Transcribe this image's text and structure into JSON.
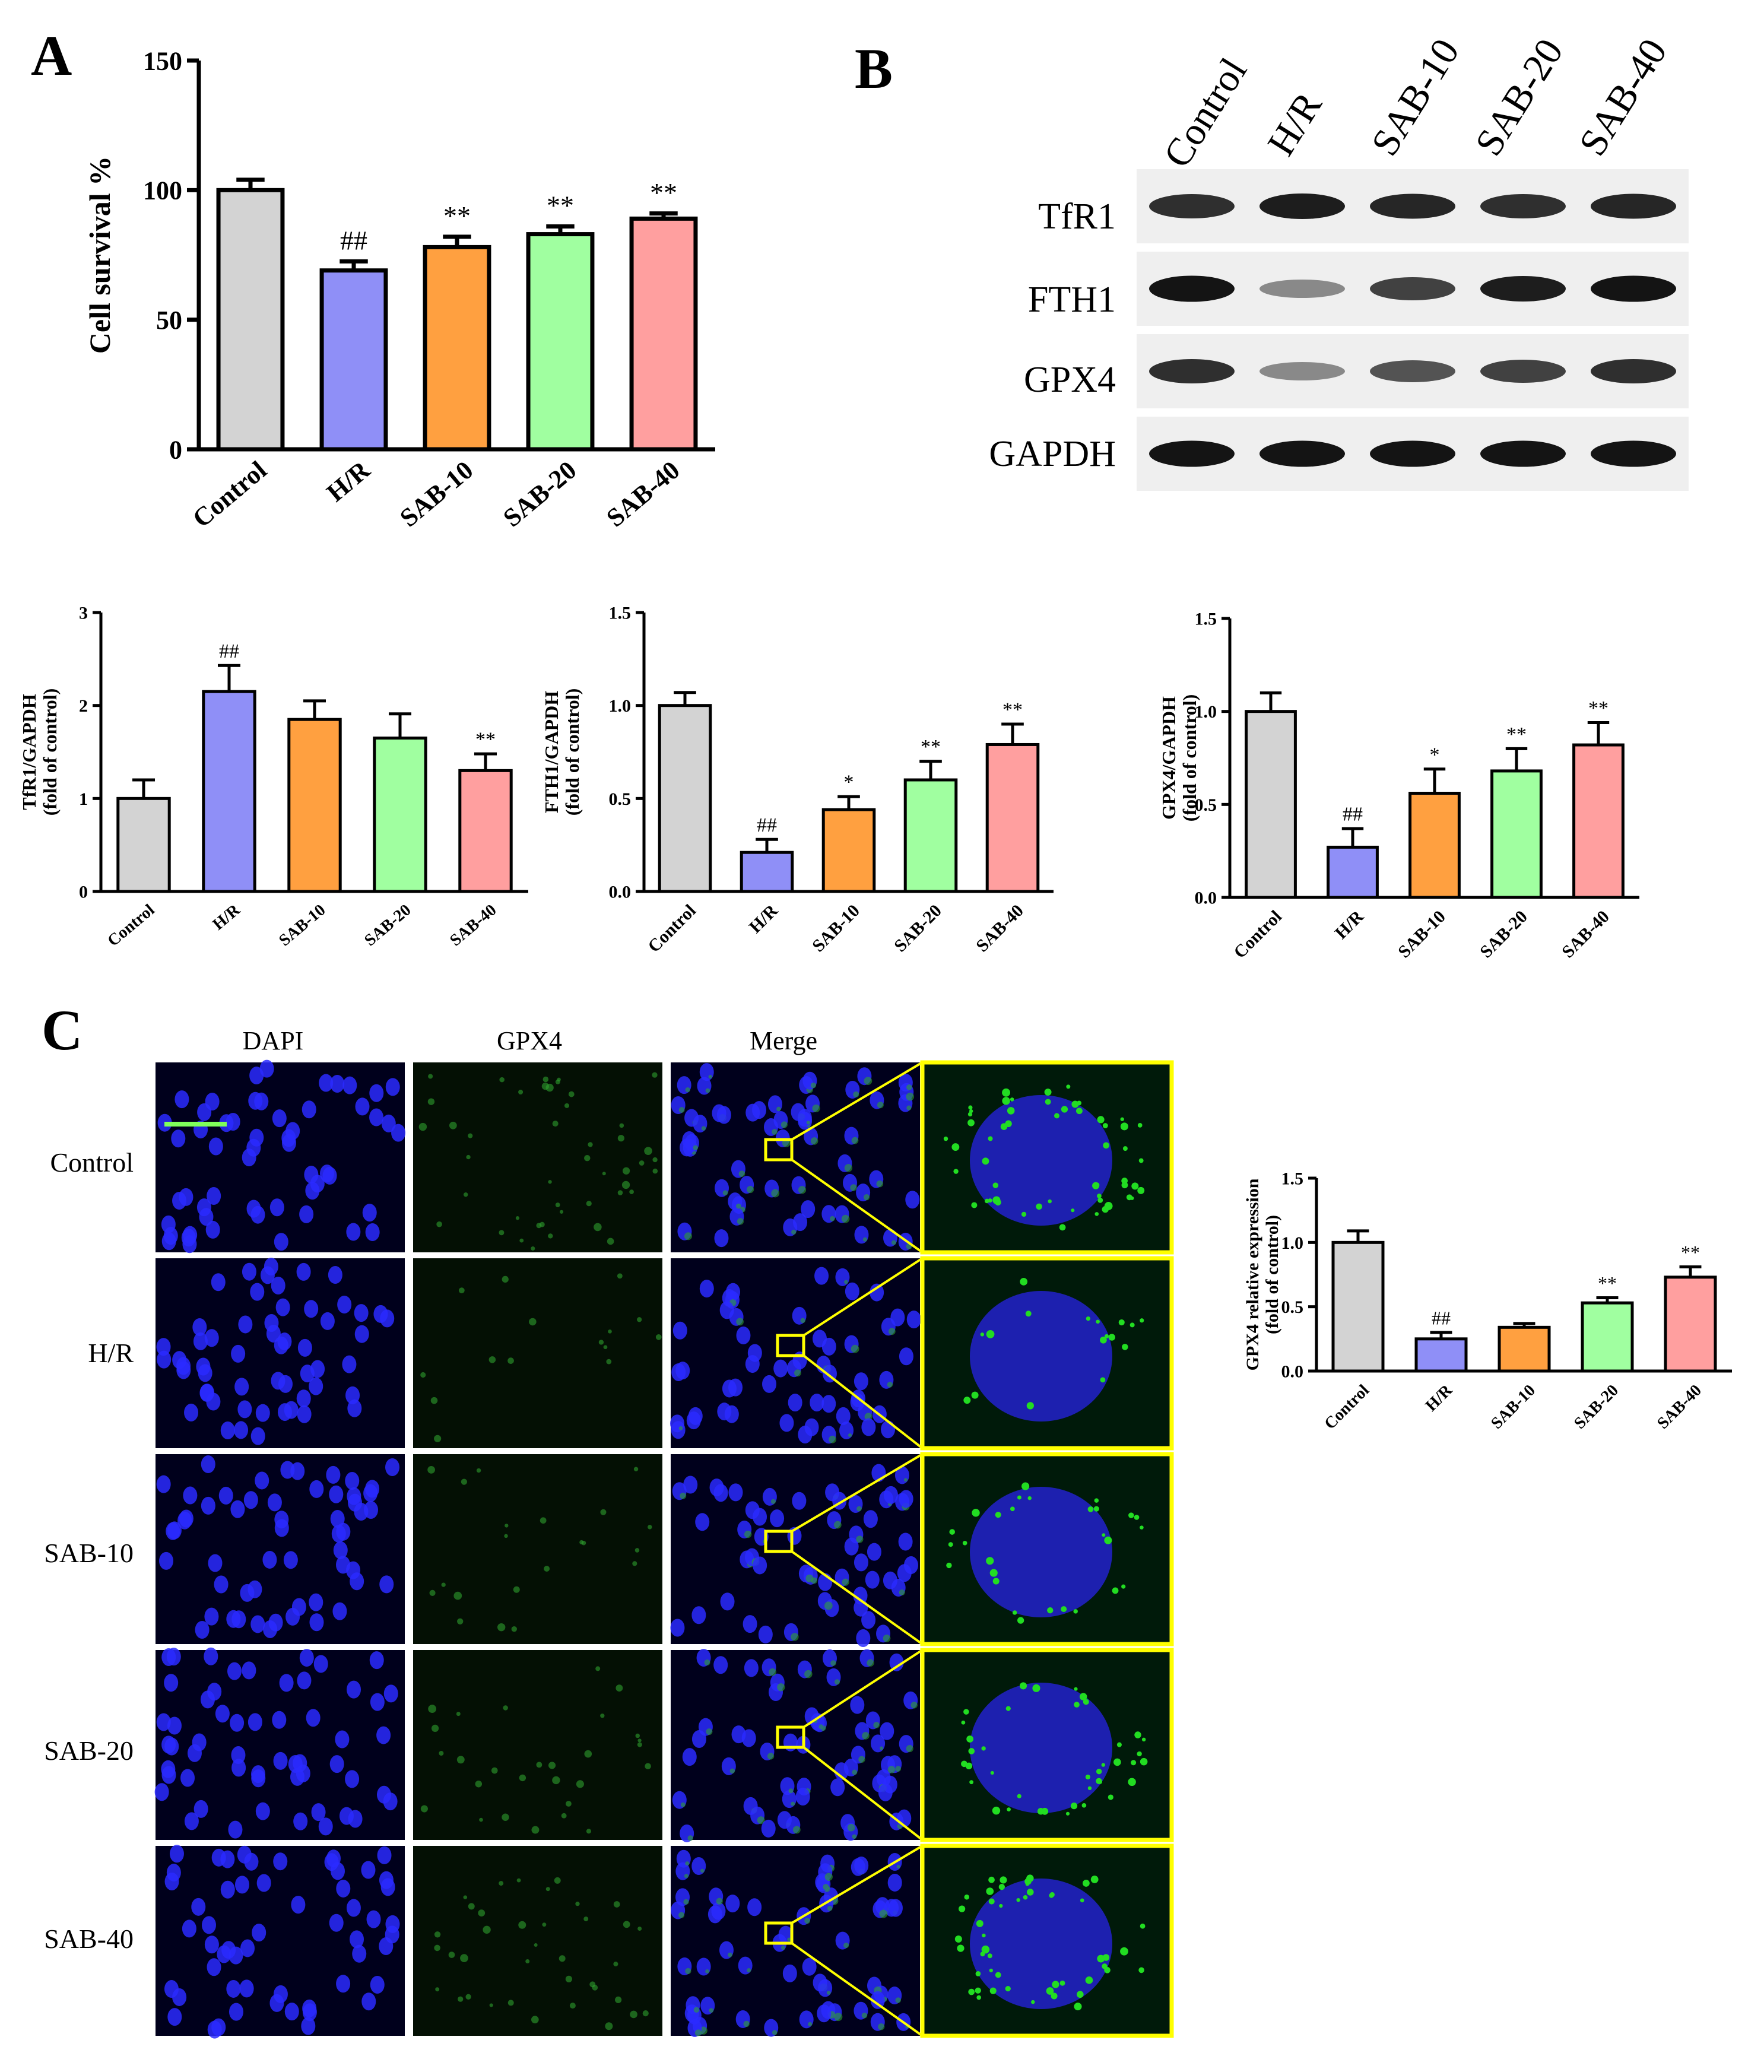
{
  "panel_letters": {
    "a": "A",
    "b": "B",
    "c": "C"
  },
  "colors": {
    "control": "#d3d3d3",
    "hr": "#8f8ff7",
    "sab10": "#ffa040",
    "sab20": "#a0ffa0",
    "sab40": "#ff9f9f",
    "yellow_box": "#ffff00",
    "scale_bar": "#7fff5a"
  },
  "chart_data": [
    {
      "id": "cell-survival",
      "type": "bar",
      "ylabel": "Cell survival %",
      "xlabel": "",
      "ylim": [
        0,
        150
      ],
      "yticks": [
        0,
        50,
        100,
        150
      ],
      "categories": [
        "Control",
        "H/R",
        "SAB-10",
        "SAB-20",
        "SAB-40"
      ],
      "values": [
        100,
        69,
        78,
        83,
        89
      ],
      "errors": [
        4,
        3.5,
        4,
        3,
        2
      ],
      "annotations": [
        "",
        "##",
        "**",
        "**",
        "**"
      ],
      "grid": false
    },
    {
      "id": "tfr1",
      "type": "bar",
      "ylabel": "TfR1/GAPDH",
      "ylabel2": "(fold of control)",
      "xlabel": "",
      "ylim": [
        0,
        3
      ],
      "yticks": [
        0,
        1,
        2,
        3
      ],
      "categories": [
        "Control",
        "H/R",
        "SAB-10",
        "SAB-20",
        "SAB-40"
      ],
      "values": [
        1.0,
        2.15,
        1.85,
        1.65,
        1.3
      ],
      "errors": [
        0.2,
        0.28,
        0.2,
        0.26,
        0.18
      ],
      "annotations": [
        "",
        "##",
        "",
        "",
        "**"
      ],
      "grid": false
    },
    {
      "id": "fth1",
      "type": "bar",
      "ylabel": "FTH1/GAPDH",
      "ylabel2": "(fold of control)",
      "xlabel": "",
      "ylim": [
        0,
        1.5
      ],
      "yticks": [
        0.0,
        0.5,
        1.0,
        1.5
      ],
      "categories": [
        "Control",
        "H/R",
        "SAB-10",
        "SAB-20",
        "SAB-40"
      ],
      "values": [
        1.0,
        0.21,
        0.44,
        0.6,
        0.79
      ],
      "errors": [
        0.07,
        0.07,
        0.07,
        0.1,
        0.11
      ],
      "annotations": [
        "",
        "##",
        "*",
        "**",
        "**"
      ],
      "grid": false
    },
    {
      "id": "gpx4-wb",
      "type": "bar",
      "ylabel": "GPX4/GAPDH",
      "ylabel2": "(fold of control)",
      "xlabel": "",
      "ylim": [
        0,
        1.5
      ],
      "yticks": [
        0.0,
        0.5,
        1.0,
        1.5
      ],
      "categories": [
        "Control",
        "H/R",
        "SAB-10",
        "SAB-20",
        "SAB-40"
      ],
      "values": [
        1.0,
        0.27,
        0.56,
        0.68,
        0.82
      ],
      "errors": [
        0.1,
        0.1,
        0.13,
        0.12,
        0.12
      ],
      "annotations": [
        "",
        "##",
        "*",
        "**",
        "**"
      ],
      "grid": false
    },
    {
      "id": "gpx4-if",
      "type": "bar",
      "ylabel": "GPX4 relative expression",
      "ylabel2": "(fold of control)",
      "xlabel": "",
      "ylim": [
        0,
        1.5
      ],
      "yticks": [
        0.0,
        0.5,
        1.0,
        1.5
      ],
      "categories": [
        "Control",
        "H/R",
        "SAB-10",
        "SAB-20",
        "SAB-40"
      ],
      "values": [
        1.0,
        0.25,
        0.34,
        0.53,
        0.73
      ],
      "errors": [
        0.09,
        0.05,
        0.03,
        0.04,
        0.08
      ],
      "annotations": [
        "",
        "##",
        "",
        "**",
        "**"
      ],
      "grid": false
    }
  ],
  "western_blot": {
    "lanes": [
      "Control",
      "H/R",
      "SAB-10",
      "SAB-20",
      "SAB-40"
    ],
    "rows": [
      {
        "label": "TfR1",
        "intensities": [
          0.85,
          0.95,
          0.9,
          0.85,
          0.9
        ]
      },
      {
        "label": "FTH1",
        "intensities": [
          1.0,
          0.35,
          0.75,
          0.95,
          1.0
        ]
      },
      {
        "label": "GPX4",
        "intensities": [
          0.85,
          0.35,
          0.65,
          0.75,
          0.85
        ]
      },
      {
        "label": "GAPDH",
        "intensities": [
          1.0,
          1.0,
          1.0,
          1.0,
          1.0
        ]
      }
    ]
  },
  "immunofluorescence": {
    "column_headers": [
      "DAPI",
      "GPX4",
      "Merge"
    ],
    "row_labels": [
      "Control",
      "H/R",
      "SAB-10",
      "SAB-20",
      "SAB-40"
    ],
    "green_level": [
      0.8,
      0.25,
      0.4,
      0.55,
      0.7
    ]
  }
}
